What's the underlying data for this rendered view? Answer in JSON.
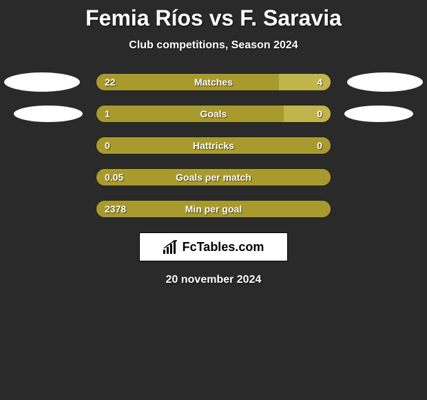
{
  "header": {
    "title": "Femia Ríos vs F. Saravia",
    "subtitle": "Club competitions, Season 2024"
  },
  "colors": {
    "left": "#a99a2e",
    "right": "#c1b44a",
    "empty": "#a99a2e",
    "text": "#ffffff",
    "background": "#2a2a2a"
  },
  "total_width": 340,
  "rows": [
    {
      "label": "Matches",
      "left_val": "22",
      "right_val": "4",
      "left_pct": 78,
      "right_pct": 22,
      "show_ellipses": true,
      "ellipse_small": false
    },
    {
      "label": "Goals",
      "left_val": "1",
      "right_val": "0",
      "left_pct": 80,
      "right_pct": 20,
      "show_ellipses": true,
      "ellipse_small": true
    },
    {
      "label": "Hattricks",
      "left_val": "0",
      "right_val": "0",
      "left_pct": 100,
      "right_pct": 0,
      "show_ellipses": false,
      "ellipse_small": false
    },
    {
      "label": "Goals per match",
      "left_val": "0.05",
      "right_val": "",
      "left_pct": 100,
      "right_pct": 0,
      "show_ellipses": false,
      "ellipse_small": false
    },
    {
      "label": "Min per goal",
      "left_val": "2378",
      "right_val": "",
      "left_pct": 100,
      "right_pct": 0,
      "show_ellipses": false,
      "ellipse_small": false
    }
  ],
  "brand": {
    "name": "FcTables.com"
  },
  "footer": {
    "date": "20 november 2024"
  }
}
